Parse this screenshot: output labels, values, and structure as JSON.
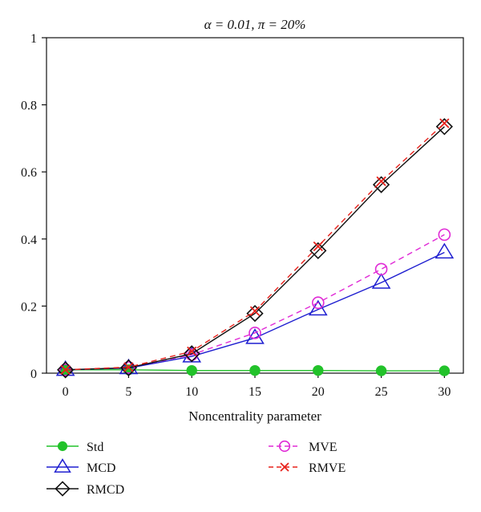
{
  "chart_data": {
    "type": "line",
    "title": "α = 0.01, π = 20%",
    "xlabel": "Noncentrality parameter",
    "ylabel": "",
    "x": [
      0,
      5,
      10,
      15,
      20,
      25,
      30
    ],
    "xlim": [
      -1.5,
      31.5
    ],
    "ylim": [
      0,
      1
    ],
    "xticks": [
      "0",
      "5",
      "10",
      "15",
      "20",
      "25",
      "30"
    ],
    "yticks": [
      "0",
      "0.2",
      "0.4",
      "0.6",
      "0.8",
      "1"
    ],
    "grid": false,
    "legend_position": "bottom",
    "series": [
      {
        "name": "Std",
        "color": "#22c22a",
        "marker": "filled-circle",
        "line": "solid",
        "values": [
          0.01,
          0.01,
          0.008,
          0.008,
          0.008,
          0.007,
          0.007
        ]
      },
      {
        "name": "MCD",
        "color": "#1f1fd0",
        "marker": "triangle",
        "line": "solid",
        "values": [
          0.01,
          0.015,
          0.05,
          0.105,
          0.19,
          0.27,
          0.36
        ]
      },
      {
        "name": "RMCD",
        "color": "#111111",
        "marker": "diamond",
        "line": "solid",
        "values": [
          0.01,
          0.016,
          0.058,
          0.178,
          0.365,
          0.562,
          0.735
        ]
      },
      {
        "name": "MVE",
        "color": "#e02ad6",
        "marker": "circle",
        "line": "dashed",
        "values": [
          0.01,
          0.017,
          0.055,
          0.12,
          0.21,
          0.31,
          0.413
        ]
      },
      {
        "name": "RMVE",
        "color": "#e8221c",
        "marker": "x",
        "line": "dashed",
        "values": [
          0.01,
          0.018,
          0.065,
          0.185,
          0.378,
          0.572,
          0.745
        ]
      }
    ]
  }
}
